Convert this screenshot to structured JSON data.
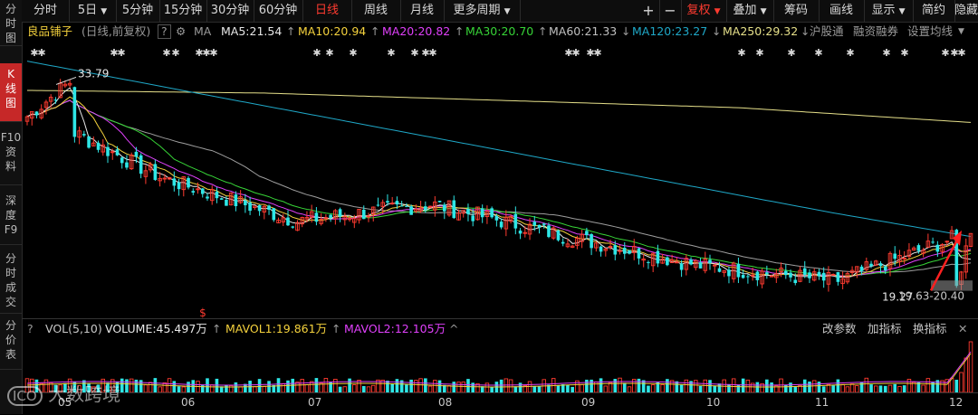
{
  "toolbar": {
    "items": [
      "分时",
      "5日",
      "5分钟",
      "15分钟",
      "30分钟",
      "60分钟",
      "日线",
      "周线",
      "月线",
      "更多周期"
    ],
    "right": [
      "+",
      "−",
      "复权",
      "叠加",
      "筹码",
      "画线",
      "显示",
      "简约",
      "隐藏"
    ]
  },
  "sidebar": [
    "分\n时\n图",
    "K\n线\n图",
    "F10\n资\n料",
    "深\n度\nF9",
    "分\n时\n成\n交",
    "分\n价\n表"
  ],
  "header": {
    "stock_name": "良品铺子",
    "mode": "(日线,前复权)",
    "question": "?",
    "ma_label": "MA",
    "ma5": "MA5:21.54",
    "ma10": "MA10:20.94",
    "ma20": "MA20:20.82",
    "ma30": "MA30:20.70",
    "ma60": "MA60:21.33",
    "ma120": "MA120:23.27",
    "ma250": "MA250:29.32",
    "hgt": "沪股通",
    "margin": "融资融券",
    "settings": "设置均线"
  },
  "annotations": {
    "high_label": "33.79",
    "low_label": "19.27",
    "range_label": "19.63-20.40",
    "dividend_marker": "$"
  },
  "volume": {
    "title": "VOL(5,10)",
    "volume": "VOLUME:45.497万",
    "mavol1": "MAVOL1:19.861万",
    "mavol2": "MAVOL2:12.105万",
    "edit_params": "改参数",
    "add_indicator": "加指标",
    "switch_indicator": "换指标"
  },
  "xaxis": {
    "ticks": [
      "05",
      "06",
      "07",
      "08",
      "09",
      "10",
      "11",
      "12"
    ]
  },
  "watermark": "大数跨境",
  "colors": {
    "up": "#ff3b30",
    "down": "#2ee6e6",
    "ma5": "#e8e8e8",
    "ma10": "#f5d23d",
    "ma20": "#e040fb",
    "ma30": "#37d437",
    "ma60": "#9e9e9e",
    "ma120": "#1fa8c8",
    "ma250": "#e6e08a"
  },
  "chart_data": {
    "type": "candlestick",
    "period": "daily, forward-adjusted",
    "months": [
      "05",
      "06",
      "07",
      "08",
      "09",
      "10",
      "11",
      "12"
    ],
    "high": 33.79,
    "low": 19.27,
    "recent_range": [
      19.63,
      20.4
    ],
    "moving_averages": {
      "MA5": 21.54,
      "MA10": 20.94,
      "MA20": 20.82,
      "MA30": 20.7,
      "MA60": 21.33,
      "MA120": 23.27,
      "MA250": 29.32
    },
    "approx_close_by_month": [
      {
        "month": "05",
        "close": 31.5
      },
      {
        "month": "06",
        "close": 27.0
      },
      {
        "month": "07",
        "close": 24.2
      },
      {
        "month": "08",
        "close": 25.3
      },
      {
        "month": "09",
        "close": 23.2
      },
      {
        "month": "10",
        "close": 21.3
      },
      {
        "month": "11",
        "close": 20.3
      },
      {
        "month": "12",
        "close": 23.5
      }
    ],
    "volume_indicator": {
      "VOLUME": "45.497万",
      "MAVOL1": "19.861万",
      "MAVOL2": "12.105万"
    }
  }
}
